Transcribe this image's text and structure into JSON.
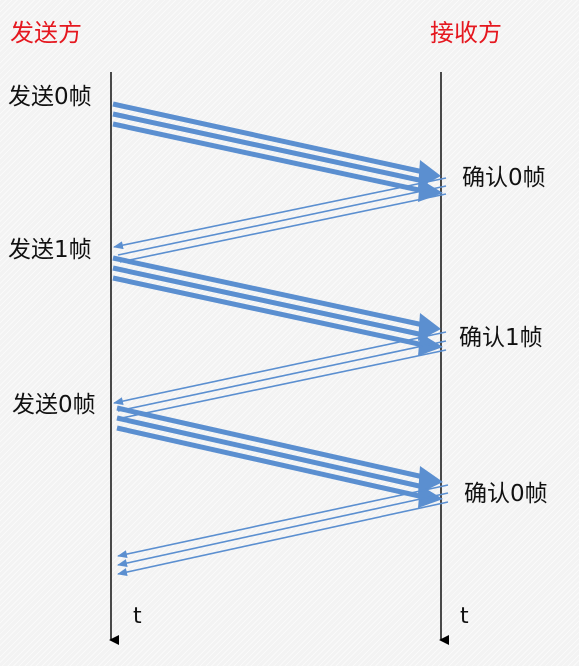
{
  "headers": {
    "sender": "发送方",
    "receiver": "接收方"
  },
  "sender_labels": [
    "发送0帧",
    "发送1帧",
    "发送0帧"
  ],
  "receiver_labels": [
    "确认0帧",
    "确认1帧",
    "确认0帧"
  ],
  "time_labels": {
    "sender": "t",
    "receiver": "t"
  },
  "colors": {
    "header": "#e5171f",
    "arrow": "#5b8fd0",
    "timeline": "#000000",
    "text": "#111111"
  }
}
